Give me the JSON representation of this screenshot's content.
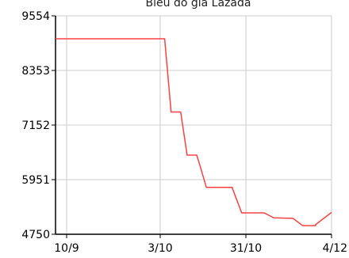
{
  "chart_data": {
    "type": "line",
    "title": "Biểu đồ giá Lazada",
    "xlabel": "",
    "ylabel": "",
    "x_ticks": [
      "10/9",
      "3/10",
      "31/10",
      "4/12"
    ],
    "y_ticks": [
      "9554",
      "8353",
      "7152",
      "5951",
      "4750"
    ],
    "ylim": [
      4750,
      9554
    ],
    "xlim": [
      "2021-09-09",
      "2021-12-04"
    ],
    "grid": true,
    "colors": {
      "line": "#ff4040",
      "grid": "#cccccc",
      "axis": "#000000"
    },
    "series": [
      {
        "points": [
          {
            "x": "2021-09-09",
            "y": 9050
          },
          {
            "x": "2021-10-13",
            "y": 9050
          },
          {
            "x": "2021-10-15",
            "y": 7440
          },
          {
            "x": "2021-10-17",
            "y": 7440
          },
          {
            "x": "2021-10-18",
            "y": 7440
          },
          {
            "x": "2021-10-20",
            "y": 6490
          },
          {
            "x": "2021-10-23",
            "y": 6490
          },
          {
            "x": "2021-10-24",
            "y": 6260
          },
          {
            "x": "2021-10-26",
            "y": 5780
          },
          {
            "x": "2021-11-03",
            "y": 5780
          },
          {
            "x": "2021-11-06",
            "y": 5220
          },
          {
            "x": "2021-11-13",
            "y": 5220
          },
          {
            "x": "2021-11-16",
            "y": 5110
          },
          {
            "x": "2021-11-22",
            "y": 5100
          },
          {
            "x": "2021-11-25",
            "y": 4940
          },
          {
            "x": "2021-11-27",
            "y": 4940
          },
          {
            "x": "2021-11-29",
            "y": 4940
          },
          {
            "x": "2021-11-29",
            "y": 4960
          },
          {
            "x": "2021-12-04",
            "y": 5230
          }
        ]
      }
    ]
  }
}
